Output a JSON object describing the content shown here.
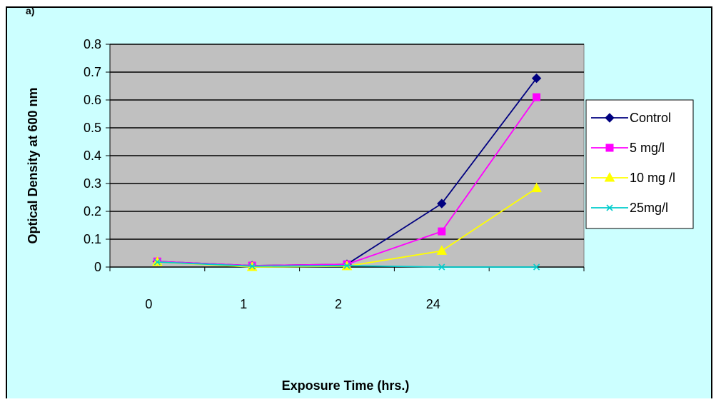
{
  "corner_mark": "a)",
  "colors": {
    "background": "#ccffff",
    "plot_area": "#c0c0c0",
    "legend_bg": "#ffffff"
  },
  "chart_data": {
    "type": "line",
    "title": "",
    "xlabel": "Exposure Time (hrs.)",
    "ylabel": "Optical Density at 600 nm",
    "ylim": [
      0,
      0.8
    ],
    "yticks": [
      "0",
      "0.1",
      "0.2",
      "0.3",
      "0.4",
      "0.5",
      "0.6",
      "0.7",
      "0.8"
    ],
    "ytick_values": [
      0,
      0.1,
      0.2,
      0.3,
      0.4,
      0.5,
      0.6,
      0.7,
      0.8
    ],
    "categories": [
      "0",
      "1",
      "2",
      "24",
      ""
    ],
    "grid": true,
    "legend_position": "right",
    "series": [
      {
        "name": "Control",
        "color": "#000080",
        "marker": "diamond",
        "values": [
          0.02,
          0.005,
          0.01,
          0.228,
          0.678
        ]
      },
      {
        "name": "5 mg/l",
        "color": "#ff00ff",
        "marker": "square",
        "values": [
          0.02,
          0.005,
          0.01,
          0.128,
          0.61
        ]
      },
      {
        "name": "10 mg /l",
        "color": "#ffff00",
        "marker": "triangle",
        "values": [
          0.018,
          0.0,
          0.003,
          0.058,
          0.283
        ]
      },
      {
        "name": "25mg/l",
        "color": "#00cccc",
        "marker": "x",
        "values": [
          0.018,
          0.003,
          0.005,
          0.0,
          0.0
        ]
      }
    ]
  }
}
